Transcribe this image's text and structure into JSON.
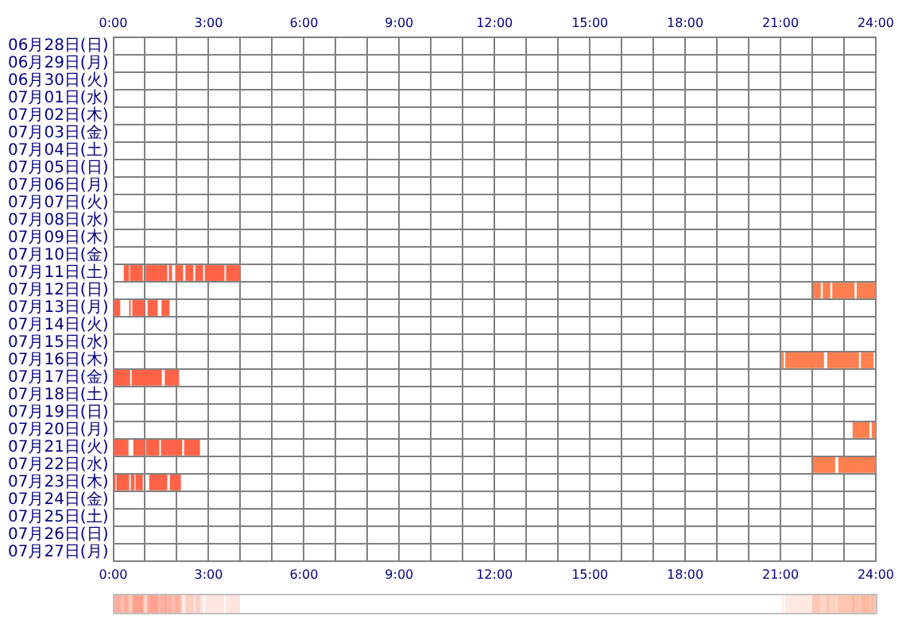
{
  "chart_data": {
    "type": "bar",
    "orientation": "horizontal",
    "grid": true,
    "categories": [
      "06月28日(日)",
      "06月29日(月)",
      "06月30日(火)",
      "07月01日(水)",
      "07月02日(木)",
      "07月03日(金)",
      "07月04日(土)",
      "07月05日(日)",
      "07月06日(月)",
      "07月07日(火)",
      "07月08日(水)",
      "07月09日(木)",
      "07月10日(金)",
      "07月11日(土)",
      "07月12日(日)",
      "07月13日(月)",
      "07月14日(火)",
      "07月15日(水)",
      "07月16日(木)",
      "07月17日(金)",
      "07月18日(土)",
      "07月19日(日)",
      "07月20日(月)",
      "07月21日(火)",
      "07月22日(水)",
      "07月23日(木)",
      "07月24日(金)",
      "07月25日(土)",
      "07月26日(日)",
      "07月27日(月)"
    ],
    "xlim": [
      0,
      24
    ],
    "xticks": [
      {
        "value": 0,
        "label": "0:00"
      },
      {
        "value": 1,
        "label": null
      },
      {
        "value": 2,
        "label": null
      },
      {
        "value": 3,
        "label": "3:00"
      },
      {
        "value": 4,
        "label": null
      },
      {
        "value": 5,
        "label": null
      },
      {
        "value": 6,
        "label": "6:00"
      },
      {
        "value": 7,
        "label": null
      },
      {
        "value": 8,
        "label": null
      },
      {
        "value": 9,
        "label": "9:00"
      },
      {
        "value": 10,
        "label": null
      },
      {
        "value": 11,
        "label": null
      },
      {
        "value": 12,
        "label": "12:00"
      },
      {
        "value": 13,
        "label": null
      },
      {
        "value": 14,
        "label": null
      },
      {
        "value": 15,
        "label": "15:00"
      },
      {
        "value": 16,
        "label": null
      },
      {
        "value": 17,
        "label": null
      },
      {
        "value": 18,
        "label": "18:00"
      },
      {
        "value": 19,
        "label": null
      },
      {
        "value": 20,
        "label": null
      },
      {
        "value": 21,
        "label": "21:00"
      },
      {
        "value": 22,
        "label": null
      },
      {
        "value": 23,
        "label": null
      },
      {
        "value": 24,
        "label": "24:00"
      }
    ],
    "x2lim": [
      0,
      24
    ],
    "x2ticks": [
      {
        "value": 0,
        "label": "0:00"
      },
      {
        "value": 1,
        "label": null
      },
      {
        "value": 2,
        "label": null
      },
      {
        "value": 3,
        "label": "3:00"
      },
      {
        "value": 4,
        "label": null
      },
      {
        "value": 5,
        "label": null
      },
      {
        "value": 6,
        "label": "6:00"
      },
      {
        "value": 7,
        "label": null
      },
      {
        "value": 8,
        "label": null
      },
      {
        "value": 9,
        "label": "9:00"
      },
      {
        "value": 10,
        "label": null
      },
      {
        "value": 11,
        "label": null
      },
      {
        "value": 12,
        "label": "12:00"
      },
      {
        "value": 13,
        "label": null
      },
      {
        "value": 14,
        "label": null
      },
      {
        "value": 15,
        "label": "15:00"
      },
      {
        "value": 16,
        "label": null
      },
      {
        "value": 17,
        "label": null
      },
      {
        "value": 18,
        "label": "18:00"
      },
      {
        "value": 19,
        "label": null
      },
      {
        "value": 20,
        "label": null
      },
      {
        "value": 21,
        "label": "21:00"
      },
      {
        "value": 22,
        "label": null
      },
      {
        "value": 23,
        "label": null
      },
      {
        "value": 24,
        "label": "24:00"
      }
    ],
    "series": [
      {
        "color": "#ff6347",
        "base": [
          null,
          null,
          null,
          null,
          null,
          null,
          null,
          null,
          null,
          null,
          null,
          null,
          null,
          0.33,
          null,
          0.02,
          null,
          null,
          null,
          0.02,
          null,
          null,
          null,
          0.02,
          null,
          0.02,
          null,
          null,
          null,
          null
        ],
        "values": [
          null,
          null,
          null,
          null,
          null,
          null,
          null,
          null,
          null,
          null,
          null,
          null,
          null,
          0.17,
          null,
          0.2,
          null,
          null,
          null,
          0.51,
          null,
          null,
          null,
          0.46,
          null,
          0.05,
          null,
          null,
          null,
          null
        ]
      },
      {
        "color": "#ff6347",
        "base": [
          null,
          null,
          null,
          null,
          null,
          null,
          null,
          null,
          null,
          null,
          null,
          null,
          null,
          0.53,
          null,
          0.5,
          null,
          null,
          null,
          0.58,
          null,
          null,
          null,
          0.63,
          null,
          0.1,
          null,
          null,
          null,
          null
        ],
        "values": [
          null,
          null,
          null,
          null,
          null,
          null,
          null,
          null,
          null,
          null,
          null,
          null,
          null,
          0.4,
          null,
          0.05,
          null,
          null,
          null,
          0.95,
          null,
          null,
          null,
          0.35,
          null,
          0.4,
          null,
          null,
          null,
          null
        ]
      },
      {
        "color": "#ff6347",
        "base": [
          null,
          null,
          null,
          null,
          null,
          null,
          null,
          null,
          null,
          null,
          null,
          null,
          null,
          1.02,
          null,
          0.6,
          null,
          null,
          null,
          1.62,
          null,
          null,
          null,
          1.03,
          null,
          0.55,
          null,
          null,
          null,
          null
        ],
        "values": [
          null,
          null,
          null,
          null,
          null,
          null,
          null,
          null,
          null,
          null,
          null,
          null,
          null,
          0.68,
          null,
          0.38,
          null,
          null,
          null,
          0.45,
          null,
          null,
          null,
          0.42,
          null,
          0.12,
          null,
          null,
          null,
          null
        ]
      },
      {
        "color": "#ff6347",
        "base": [
          null,
          null,
          null,
          null,
          null,
          null,
          null,
          null,
          null,
          null,
          null,
          null,
          null,
          1.75,
          null,
          1.08,
          null,
          null,
          null,
          null,
          null,
          null,
          null,
          1.5,
          null,
          0.7,
          null,
          null,
          null,
          null
        ],
        "values": [
          null,
          null,
          null,
          null,
          null,
          null,
          null,
          null,
          null,
          null,
          null,
          null,
          null,
          0.1,
          null,
          0.32,
          null,
          null,
          null,
          null,
          null,
          null,
          null,
          0.67,
          null,
          0.23,
          null,
          null,
          null,
          null
        ]
      },
      {
        "color": "#ff6347",
        "base": [
          null,
          null,
          null,
          null,
          null,
          null,
          null,
          null,
          null,
          null,
          null,
          null,
          null,
          1.95,
          null,
          1.52,
          null,
          null,
          null,
          null,
          null,
          null,
          null,
          2.23,
          null,
          1.13,
          null,
          null,
          null,
          null
        ],
        "values": [
          null,
          null,
          null,
          null,
          null,
          null,
          null,
          null,
          null,
          null,
          null,
          null,
          null,
          0.25,
          null,
          0.25,
          null,
          null,
          null,
          null,
          null,
          null,
          null,
          0.5,
          null,
          0.57,
          null,
          null,
          null,
          null
        ]
      },
      {
        "color": "#ff6347",
        "base": [
          null,
          null,
          null,
          null,
          null,
          null,
          null,
          null,
          null,
          null,
          null,
          null,
          null,
          2.27,
          null,
          null,
          null,
          null,
          null,
          null,
          null,
          null,
          null,
          null,
          null,
          1.78,
          null,
          null,
          null,
          null
        ],
        "values": [
          null,
          null,
          null,
          null,
          null,
          null,
          null,
          null,
          null,
          null,
          null,
          null,
          null,
          0.25,
          null,
          null,
          null,
          null,
          null,
          null,
          null,
          null,
          null,
          null,
          null,
          0.35,
          null,
          null,
          null,
          null
        ]
      },
      {
        "color": "#ff6347",
        "base": [
          null,
          null,
          null,
          null,
          null,
          null,
          null,
          null,
          null,
          null,
          null,
          null,
          null,
          2.58,
          null,
          null,
          null,
          null,
          null,
          null,
          null,
          null,
          null,
          null,
          null,
          null,
          null,
          null,
          null,
          null
        ],
        "values": [
          null,
          null,
          null,
          null,
          null,
          null,
          null,
          null,
          null,
          null,
          null,
          null,
          null,
          0.25,
          null,
          null,
          null,
          null,
          null,
          null,
          null,
          null,
          null,
          null,
          null,
          null,
          null,
          null,
          null,
          null
        ]
      },
      {
        "color": "#ff6347",
        "base": [
          null,
          null,
          null,
          null,
          null,
          null,
          null,
          null,
          null,
          null,
          null,
          null,
          null,
          2.88,
          null,
          null,
          null,
          null,
          null,
          null,
          null,
          null,
          null,
          null,
          null,
          null,
          null,
          null,
          null,
          null
        ],
        "values": [
          null,
          null,
          null,
          null,
          null,
          null,
          null,
          null,
          null,
          null,
          null,
          null,
          null,
          0.62,
          null,
          null,
          null,
          null,
          null,
          null,
          null,
          null,
          null,
          null,
          null,
          null,
          null,
          null,
          null,
          null
        ]
      },
      {
        "color": "#ff6347",
        "base": [
          null,
          null,
          null,
          null,
          null,
          null,
          null,
          null,
          null,
          null,
          null,
          null,
          null,
          3.55,
          null,
          null,
          null,
          null,
          null,
          null,
          null,
          null,
          null,
          null,
          null,
          null,
          null,
          null,
          null,
          null
        ],
        "values": [
          null,
          null,
          null,
          null,
          null,
          null,
          null,
          null,
          null,
          null,
          null,
          null,
          null,
          0.45,
          null,
          null,
          null,
          null,
          null,
          null,
          null,
          null,
          null,
          null,
          null,
          null,
          null,
          null,
          null,
          null
        ]
      },
      {
        "color": "#ff7f50",
        "base": [
          null,
          null,
          null,
          null,
          null,
          null,
          null,
          null,
          null,
          null,
          null,
          null,
          null,
          null,
          22.02,
          null,
          null,
          null,
          21.03,
          null,
          null,
          null,
          23.27,
          null,
          22.02,
          null,
          null,
          null,
          null,
          null
        ],
        "values": [
          null,
          null,
          null,
          null,
          null,
          null,
          null,
          null,
          null,
          null,
          null,
          null,
          null,
          null,
          0.25,
          null,
          null,
          null,
          0.07,
          null,
          null,
          null,
          0.53,
          null,
          0.7,
          null,
          null,
          null,
          null,
          null
        ]
      },
      {
        "color": "#ff7f50",
        "base": [
          null,
          null,
          null,
          null,
          null,
          null,
          null,
          null,
          null,
          null,
          null,
          null,
          null,
          null,
          22.33,
          null,
          null,
          null,
          21.15,
          null,
          null,
          null,
          23.87,
          null,
          22.82,
          null,
          null,
          null,
          null,
          null
        ],
        "values": [
          null,
          null,
          null,
          null,
          null,
          null,
          null,
          null,
          null,
          null,
          null,
          null,
          null,
          null,
          0.24,
          null,
          null,
          null,
          1.22,
          null,
          null,
          null,
          0.13,
          null,
          1.18,
          null,
          null,
          null,
          null,
          null
        ]
      },
      {
        "color": "#ff7f50",
        "base": [
          null,
          null,
          null,
          null,
          null,
          null,
          null,
          null,
          null,
          null,
          null,
          null,
          null,
          null,
          22.63,
          null,
          null,
          null,
          22.47,
          null,
          null,
          null,
          null,
          null,
          null,
          null,
          null,
          null,
          null,
          null
        ],
        "values": [
          null,
          null,
          null,
          null,
          null,
          null,
          null,
          null,
          null,
          null,
          null,
          null,
          null,
          null,
          0.7,
          null,
          null,
          null,
          1,
          null,
          null,
          null,
          null,
          null,
          null,
          null,
          null,
          null,
          null,
          null
        ]
      },
      {
        "color": "#ff7f50",
        "base": [
          null,
          null,
          null,
          null,
          null,
          null,
          null,
          null,
          null,
          null,
          null,
          null,
          null,
          null,
          23.4,
          null,
          null,
          null,
          23.53,
          null,
          null,
          null,
          null,
          null,
          null,
          null,
          null,
          null,
          null,
          null
        ],
        "values": [
          null,
          null,
          null,
          null,
          null,
          null,
          null,
          null,
          null,
          null,
          null,
          null,
          null,
          null,
          0.6,
          null,
          null,
          null,
          0.4,
          null,
          null,
          null,
          null,
          null,
          null,
          null,
          null,
          null,
          null,
          null
        ]
      }
    ]
  }
}
